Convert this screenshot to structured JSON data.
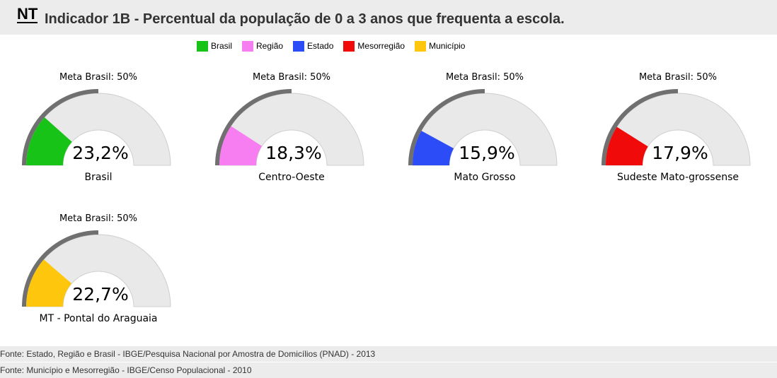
{
  "header": {
    "badge": "NT",
    "title": "Indicador 1B - Percentual da população de 0 a 3 anos que frequenta a escola."
  },
  "legend": [
    {
      "label": "Brasil",
      "color": "#18c318"
    },
    {
      "label": "Região",
      "color": "#f77ef0"
    },
    {
      "label": "Estado",
      "color": "#2b4cf6"
    },
    {
      "label": "Mesorregião",
      "color": "#f10a0a"
    },
    {
      "label": "Município",
      "color": "#fec60c"
    }
  ],
  "chart_data": {
    "type": "gauge",
    "min": 0,
    "max": 100,
    "target": 50,
    "target_label": "Meta Brasil: 50%",
    "gauges": [
      {
        "name": "Brasil",
        "value": 23.2,
        "value_label": "23,2%",
        "color": "#18c318"
      },
      {
        "name": "Centro-Oeste",
        "value": 18.3,
        "value_label": "18,3%",
        "color": "#f77ef0"
      },
      {
        "name": "Mato Grosso",
        "value": 15.9,
        "value_label": "15,9%",
        "color": "#2b4cf6"
      },
      {
        "name": "Sudeste Mato-grossense",
        "value": 17.9,
        "value_label": "17,9%",
        "color": "#f10a0a"
      },
      {
        "name": "MT - Pontal do Araguaia",
        "value": 22.7,
        "value_label": "22,7%",
        "color": "#fec60c"
      }
    ]
  },
  "footer": {
    "line1": "Fonte: Estado, Região e Brasil - IBGE/Pesquisa Nacional por Amostra de Domicílios (PNAD) - 2013",
    "line2": "Fonte: Município e Mesorregião - IBGE/Censo Populacional - 2010"
  }
}
